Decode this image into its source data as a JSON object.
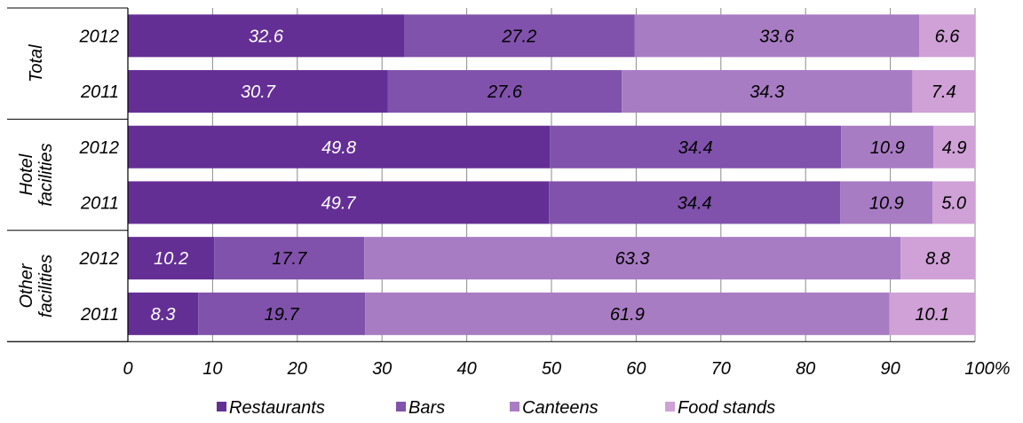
{
  "chart_data": {
    "type": "bar",
    "orientation": "horizontal",
    "stacked": true,
    "groups": [
      {
        "name": "Total",
        "rows": [
          {
            "year": "2012",
            "values": [
              32.6,
              27.2,
              33.6,
              6.6
            ],
            "labels": [
              "32.6",
              "27.2",
              "33.6",
              "6.6"
            ]
          },
          {
            "year": "2011",
            "values": [
              30.7,
              27.6,
              34.3,
              7.4
            ],
            "labels": [
              "30.7",
              "27.6",
              "34.3",
              "7.4"
            ]
          }
        ]
      },
      {
        "name": "Hotel facilities",
        "name_lines": [
          "Hotel",
          "facilities"
        ],
        "rows": [
          {
            "year": "2012",
            "values": [
              49.8,
              34.4,
              10.9,
              4.9
            ],
            "labels": [
              "49.8",
              "34.4",
              "10.9",
              "4.9"
            ]
          },
          {
            "year": "2011",
            "values": [
              49.7,
              34.4,
              10.9,
              5.0
            ],
            "labels": [
              "49.7",
              "34.4",
              "10.9",
              "5.0"
            ]
          }
        ]
      },
      {
        "name": "Other facilities",
        "name_lines": [
          "Other",
          "facilities"
        ],
        "rows": [
          {
            "year": "2012",
            "values": [
              10.2,
              17.7,
              63.3,
              8.8
            ],
            "labels": [
              "10.2",
              "17.7",
              "63.3",
              "8.8"
            ]
          },
          {
            "year": "2011",
            "values": [
              8.3,
              19.7,
              61.9,
              10.1
            ],
            "labels": [
              "8.3",
              "19.7",
              "61.9",
              "10.1"
            ]
          }
        ]
      }
    ],
    "series": [
      {
        "name": "Restaurants",
        "color": "#642f95",
        "label_color": "#ffffff"
      },
      {
        "name": "Bars",
        "color": "#8052ab",
        "label_color": "#000000"
      },
      {
        "name": "Canteens",
        "color": "#a87cc3",
        "label_color": "#000000"
      },
      {
        "name": "Food stands",
        "color": "#cfa1d6",
        "label_color": "#000000"
      }
    ],
    "x_ticks": [
      "0",
      "10",
      "20",
      "30",
      "40",
      "50",
      "60",
      "70",
      "80",
      "90",
      "100%"
    ],
    "xlim": [
      0,
      100
    ],
    "grid": true,
    "legend_position": "bottom"
  }
}
